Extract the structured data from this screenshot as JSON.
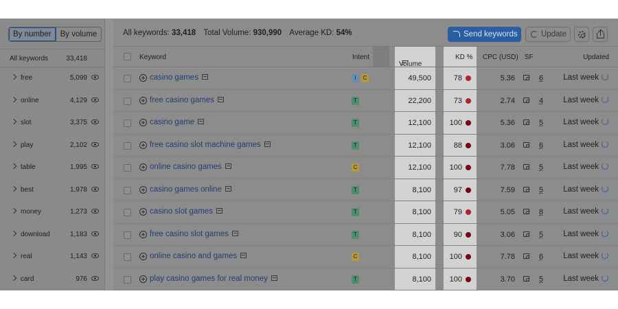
{
  "toggle": {
    "by_number": "By number",
    "by_volume": "By volume"
  },
  "left_header": {
    "title": "All keywords",
    "count": "33,418"
  },
  "groups": [
    {
      "word": "free",
      "count": "5,099"
    },
    {
      "word": "online",
      "count": "4,129"
    },
    {
      "word": "slot",
      "count": "3,375"
    },
    {
      "word": "play",
      "count": "2,102"
    },
    {
      "word": "table",
      "count": "1,995"
    },
    {
      "word": "best",
      "count": "1,978"
    },
    {
      "word": "money",
      "count": "1,273"
    },
    {
      "word": "download",
      "count": "1,183"
    },
    {
      "word": "real",
      "count": "1,143"
    },
    {
      "word": "card",
      "count": "976"
    }
  ],
  "summary": {
    "all_keywords_label": "All keywords:",
    "all_keywords_value": "33,418",
    "total_volume_label": "Total Volume:",
    "total_volume_value": "930,990",
    "avg_kd_label": "Average KD:",
    "avg_kd_value": "54%"
  },
  "toolbar": {
    "send_label": "Send keywords",
    "update_label": "Update"
  },
  "columns": {
    "keyword": "Keyword",
    "intent": "Intent",
    "volume": "Volume",
    "kd": "KD %",
    "cpc": "CPC (USD)",
    "sf": "SF",
    "updated": "Updated"
  },
  "colors": {
    "kd_hard": "#b3202a",
    "kd_very_hard": "#7a0010",
    "accent": "#2a5ea3"
  },
  "rows": [
    {
      "keyword": "casino games",
      "intents": [
        "I",
        "C"
      ],
      "volume": "49,500",
      "kd": "78",
      "kd_level": "hard",
      "cpc": "5.36",
      "sf": "6",
      "updated": "Last week"
    },
    {
      "keyword": "free casino games",
      "intents": [
        "T"
      ],
      "volume": "22,200",
      "kd": "73",
      "kd_level": "hard",
      "cpc": "2.74",
      "sf": "4",
      "updated": "Last week"
    },
    {
      "keyword": "casino game",
      "intents": [
        "T"
      ],
      "volume": "12,100",
      "kd": "100",
      "kd_level": "very_hard",
      "cpc": "5.36",
      "sf": "5",
      "updated": "Last week"
    },
    {
      "keyword": "free casino slot machine games",
      "intents": [
        "T"
      ],
      "volume": "12,100",
      "kd": "88",
      "kd_level": "very_hard",
      "cpc": "3.06",
      "sf": "6",
      "updated": "Last week"
    },
    {
      "keyword": "online casino games",
      "intents": [
        "C"
      ],
      "volume": "12,100",
      "kd": "100",
      "kd_level": "very_hard",
      "cpc": "7.78",
      "sf": "5",
      "updated": "Last week"
    },
    {
      "keyword": "casino games online",
      "intents": [
        "T"
      ],
      "volume": "8,100",
      "kd": "97",
      "kd_level": "very_hard",
      "cpc": "7.59",
      "sf": "5",
      "updated": "Last week"
    },
    {
      "keyword": "casino slot games",
      "intents": [
        "T"
      ],
      "volume": "8,100",
      "kd": "79",
      "kd_level": "hard",
      "cpc": "5.05",
      "sf": "8",
      "updated": "Last week"
    },
    {
      "keyword": "free casino slot games",
      "intents": [
        "T"
      ],
      "volume": "8,100",
      "kd": "90",
      "kd_level": "very_hard",
      "cpc": "3.06",
      "sf": "5",
      "updated": "Last week"
    },
    {
      "keyword": "online casino and games",
      "intents": [
        "C"
      ],
      "volume": "8,100",
      "kd": "100",
      "kd_level": "very_hard",
      "cpc": "7.78",
      "sf": "6",
      "updated": "Last week"
    },
    {
      "keyword": "play casino games for real money",
      "intents": [
        "T"
      ],
      "volume": "8,100",
      "kd": "100",
      "kd_level": "very_hard",
      "cpc": "3.70",
      "sf": "5",
      "updated": "Last week"
    }
  ]
}
